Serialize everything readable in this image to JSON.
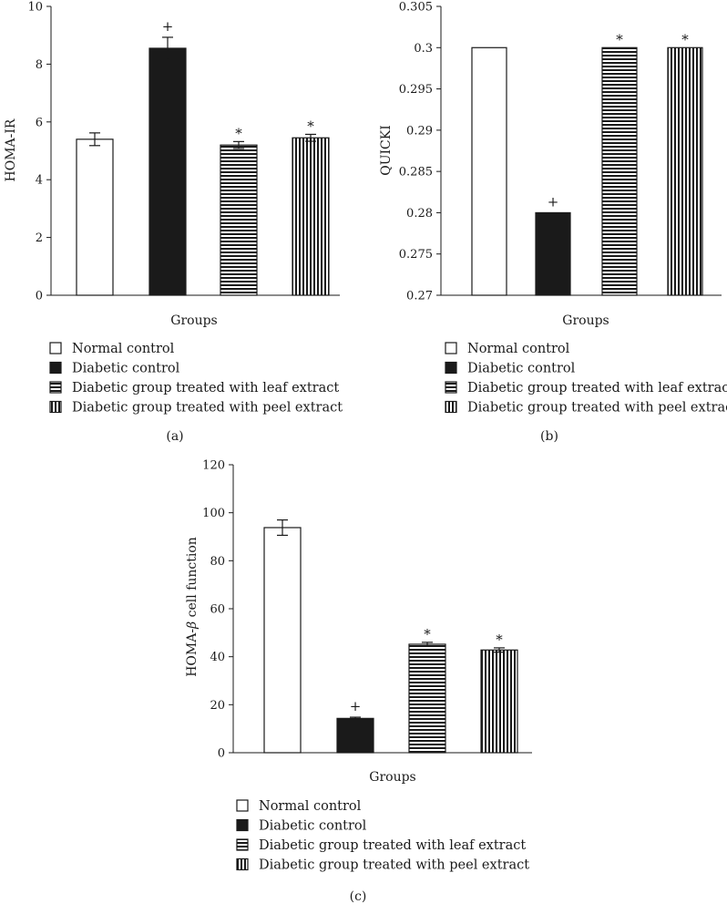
{
  "figure": {
    "captions": [
      "(a)",
      "(b)",
      "(c)"
    ]
  },
  "legend": {
    "items": [
      {
        "label": "Normal control",
        "pattern": "white"
      },
      {
        "label": "Diabetic control",
        "pattern": "black"
      },
      {
        "label": "Diabetic group treated with leaf extract",
        "pattern": "hstripes"
      },
      {
        "label": "Diabetic group treated with peel extract",
        "pattern": "vstripes"
      }
    ]
  },
  "chart_data": [
    {
      "panel": "(a)",
      "type": "bar",
      "categories": [
        "Normal control",
        "Diabetic control",
        "Diabetic group treated with leaf extract",
        "Diabetic group treated with peel extract"
      ],
      "values": [
        5.4,
        8.55,
        5.2,
        5.45
      ],
      "errors": [
        0.22,
        0.38,
        0.12,
        0.12
      ],
      "annotations": [
        "",
        "+",
        "*",
        "*"
      ],
      "xlabel": "Groups",
      "ylabel": "HOMA-IR",
      "ylim": [
        0,
        10
      ],
      "yticks": [
        0,
        2,
        4,
        6,
        8,
        10
      ],
      "yticklabels": [
        "0",
        "2",
        "4",
        "6",
        "8",
        "10"
      ]
    },
    {
      "panel": "(b)",
      "type": "bar",
      "categories": [
        "Normal control",
        "Diabetic control",
        "Diabetic group treated with leaf extract",
        "Diabetic group treated with peel extract"
      ],
      "values": [
        0.3,
        0.28,
        0.3,
        0.3
      ],
      "errors": [
        0,
        0,
        0,
        0
      ],
      "annotations": [
        "",
        "+",
        "*",
        "*"
      ],
      "xlabel": "Groups",
      "ylabel": "QUICKI",
      "ylim": [
        0.27,
        0.305
      ],
      "yticks": [
        0.27,
        0.275,
        0.28,
        0.285,
        0.29,
        0.295,
        0.3,
        0.305
      ],
      "yticklabels": [
        "0.27",
        "0.275",
        "0.28",
        "0.285",
        "0.29",
        "0.295",
        "0.3",
        "0.305"
      ]
    },
    {
      "panel": "(c)",
      "type": "bar",
      "categories": [
        "Normal control",
        "Diabetic control",
        "Diabetic group treated with leaf extract",
        "Diabetic group treated with peel extract"
      ],
      "values": [
        93.8,
        14.3,
        45.2,
        42.8
      ],
      "errors": [
        3.2,
        0.5,
        0.8,
        0.9
      ],
      "annotations": [
        "",
        "+",
        "*",
        "*"
      ],
      "xlabel": "Groups",
      "ylabel": "HOMA-β cell function",
      "ylabel_prefix": "HOMA-",
      "ylabel_symbol": "β",
      "ylabel_suffix": " cell function",
      "ylim": [
        0,
        120
      ],
      "yticks": [
        0,
        20,
        40,
        60,
        80,
        100,
        120
      ],
      "yticklabels": [
        "0",
        "20",
        "40",
        "60",
        "80",
        "100",
        "120"
      ]
    }
  ]
}
